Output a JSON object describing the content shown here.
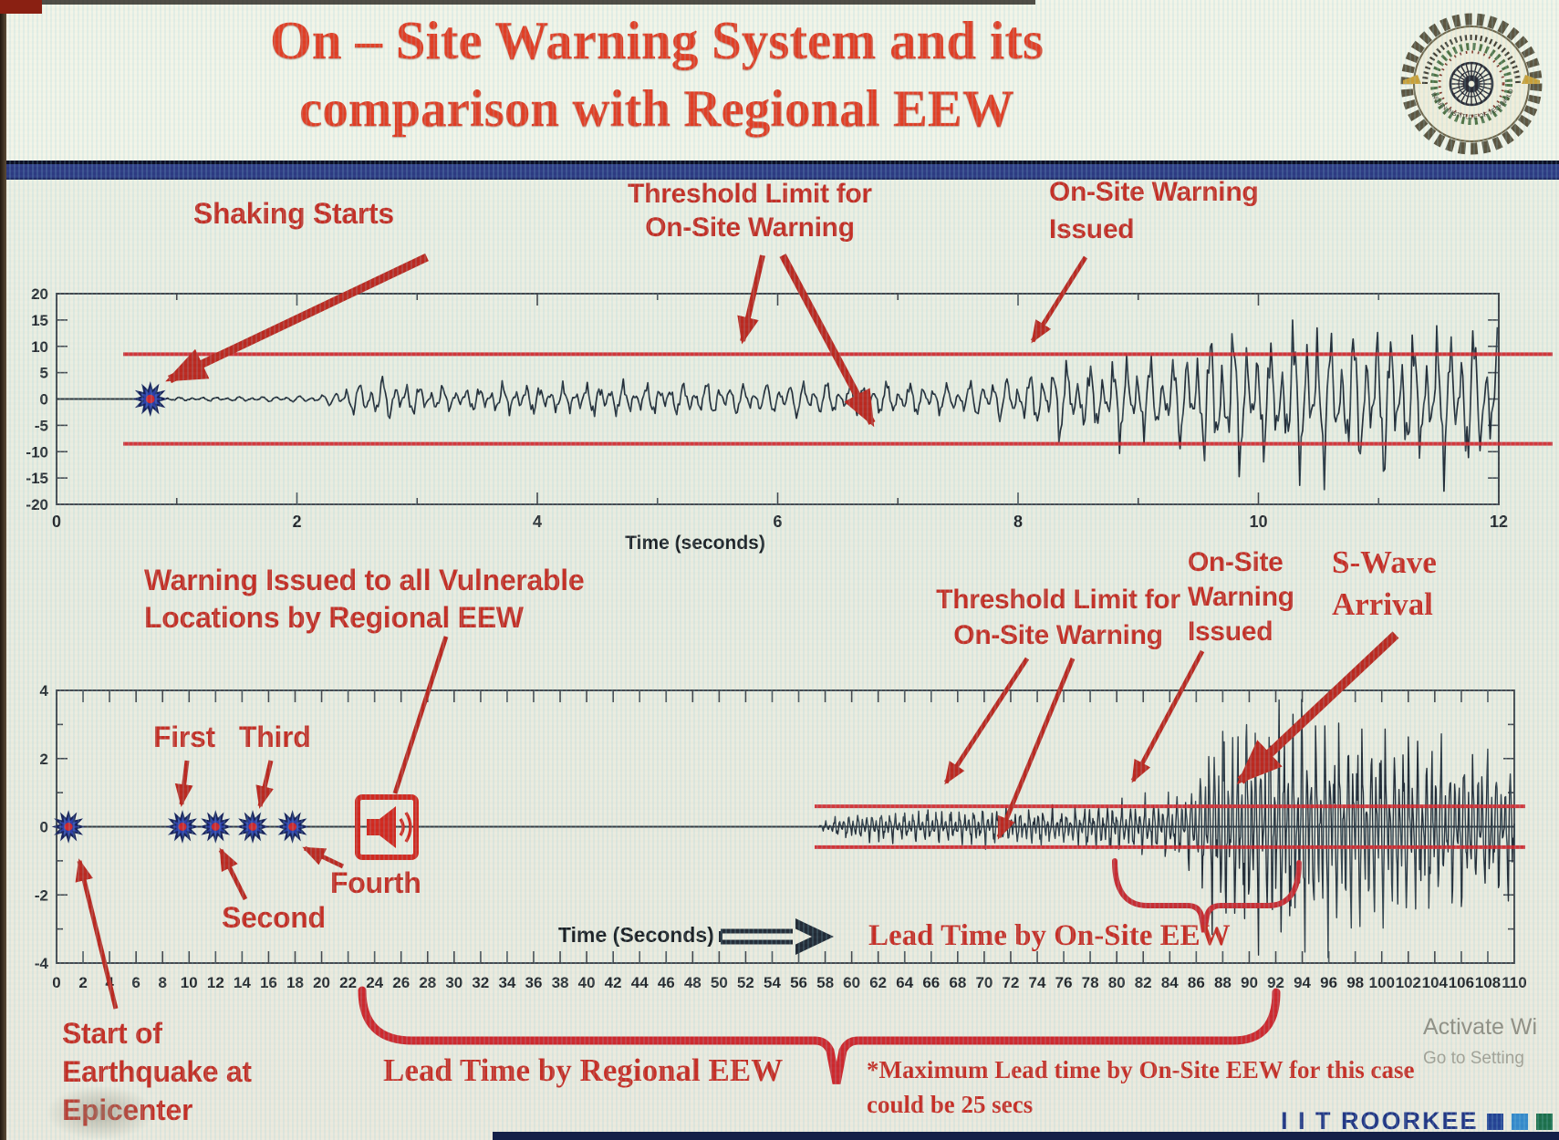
{
  "title": {
    "line1": "On – Site Warning System and its",
    "line2": "comparison with Regional EEW"
  },
  "logo": {
    "bottom_arc_text": "INDIAN INSTITUTE OF TECHNOLOGY ROORKEE"
  },
  "divider": {
    "color": "#26357f"
  },
  "ann": {
    "shaking": "Shaking Starts",
    "thr_top_1": "Threshold Limit for",
    "thr_top_2": "On-Site Warning",
    "onsite_top_1": "On-Site Warning",
    "onsite_top_2": "Issued",
    "regional_1": "Warning Issued to all Vulnerable",
    "regional_2": "Locations by Regional EEW",
    "first": "First",
    "second": "Second",
    "third": "Third",
    "fourth": "Fourth",
    "thr_bot_1": "Threshold Limit for",
    "thr_bot_2": "On-Site Warning",
    "onsite_bot_1": "On-Site",
    "onsite_bot_2": "Warning",
    "onsite_bot_3": "Issued",
    "swave_1": "S-Wave",
    "swave_2": "Arrival",
    "epicenter_1": "Start of",
    "epicenter_2": "Earthquake at",
    "epicenter_3": "Epicenter",
    "lead_onsite": "Lead Time by On-Site EEW",
    "lead_regional": "Lead Time by Regional EEW",
    "footnote_1": "*Maximum Lead time by On-Site EEW for this case",
    "footnote_2": "could be 25 secs"
  },
  "watermark": {
    "line1": "Activate Wi",
    "line2": "Go to Setting"
  },
  "branding": {
    "text": "I I T ROORKEE",
    "squares": [
      "#1d3c90",
      "#2e86c9",
      "#156b46"
    ]
  },
  "colors": {
    "accent_red": "#c3271d",
    "threshold_red": "#cf2026",
    "wave": "#1c2632",
    "star_blue": "#2438a6",
    "title_red": "#e0381e",
    "band_navy": "#26357f"
  },
  "chart_data": [
    {
      "type": "line",
      "name": "onsite-warning-seismogram",
      "xlabel": "Time (seconds)",
      "x_range": [
        0,
        12
      ],
      "y_range": [
        -20,
        20
      ],
      "x_ticks": [
        0,
        2,
        4,
        6,
        8,
        10,
        12
      ],
      "y_ticks": [
        20,
        15,
        10,
        5,
        0,
        -5,
        -10,
        -15,
        -20
      ],
      "threshold": 8.5,
      "shaking_start_x": 0.78,
      "warning_issued_x": 8.2,
      "envelope": [
        [
          0.78,
          0.3
        ],
        [
          1.5,
          0.5
        ],
        [
          2.2,
          0.8
        ],
        [
          2.45,
          3.2
        ],
        [
          2.7,
          4.8
        ],
        [
          3.0,
          3.0
        ],
        [
          3.4,
          2.2
        ],
        [
          3.8,
          3.0
        ],
        [
          4.2,
          2.6
        ],
        [
          4.6,
          3.4
        ],
        [
          5.0,
          3.0
        ],
        [
          5.4,
          3.8
        ],
        [
          5.8,
          3.2
        ],
        [
          6.2,
          4.2
        ],
        [
          6.6,
          3.4
        ],
        [
          7.0,
          3.8
        ],
        [
          7.4,
          3.2
        ],
        [
          7.8,
          4.6
        ],
        [
          8.1,
          5.2
        ],
        [
          8.35,
          8.8
        ],
        [
          8.6,
          6.5
        ],
        [
          8.9,
          9.5
        ],
        [
          9.2,
          7.5
        ],
        [
          9.5,
          12
        ],
        [
          9.8,
          15
        ],
        [
          10.1,
          11
        ],
        [
          10.4,
          16.5
        ],
        [
          10.7,
          13
        ],
        [
          11.0,
          16
        ],
        [
          11.3,
          12
        ],
        [
          11.6,
          15.5
        ],
        [
          12,
          13.5
        ]
      ],
      "osc": [
        [
          63,
          1,
          0
        ],
        [
          37.3,
          0.55,
          1.3
        ],
        [
          151,
          0.3,
          0.7
        ]
      ],
      "mod_seed": 211.7,
      "start_t": 0.78,
      "dt": 0.012
    },
    {
      "type": "line",
      "name": "regional-vs-onsite-seismogram",
      "xlabel": "Time (Seconds)",
      "x_range": [
        0,
        110
      ],
      "y_range": [
        -4,
        4
      ],
      "x_ticks": [
        0,
        2,
        4,
        6,
        8,
        10,
        12,
        14,
        16,
        18,
        20,
        22,
        24,
        26,
        28,
        30,
        32,
        34,
        36,
        38,
        40,
        42,
        44,
        46,
        48,
        50,
        52,
        54,
        56,
        58,
        60,
        62,
        64,
        66,
        68,
        70,
        72,
        74,
        76,
        78,
        80,
        82,
        84,
        86,
        88,
        90,
        92,
        94,
        96,
        98,
        100,
        102,
        104,
        106,
        108,
        110
      ],
      "y_ticks": [
        4,
        2,
        0,
        -2,
        -4
      ],
      "threshold": 0.6,
      "epicenter_x": 0.9,
      "p_wave_detections": [
        {
          "label": "First",
          "x": 9.5
        },
        {
          "label": "Second",
          "x": 12
        },
        {
          "label": "Third",
          "x": 14.8
        },
        {
          "label": "Fourth",
          "x": 17.8
        }
      ],
      "regional_warning_x": 24.8,
      "onsite_warning_x": 80,
      "swave_arrival_x": 86.5,
      "lead_time_regional_span": [
        24.5,
        93
      ],
      "lead_time_onsite_span": [
        80,
        93.5
      ],
      "max_lead_time_onsite_secs": 25,
      "envelope": [
        [
          57.5,
          0.05
        ],
        [
          58,
          0.15
        ],
        [
          59,
          0.3
        ],
        [
          60,
          0.38
        ],
        [
          62,
          0.45
        ],
        [
          64,
          0.4
        ],
        [
          66,
          0.5
        ],
        [
          68,
          0.45
        ],
        [
          70,
          0.55
        ],
        [
          72,
          0.5
        ],
        [
          74,
          0.55
        ],
        [
          76,
          0.5
        ],
        [
          78,
          0.65
        ],
        [
          80,
          0.78
        ],
        [
          81,
          0.68
        ],
        [
          82,
          0.85
        ],
        [
          83,
          0.8
        ],
        [
          84,
          0.95
        ],
        [
          85,
          1.05
        ],
        [
          86,
          1.4
        ],
        [
          87,
          2.6
        ],
        [
          88,
          3.2
        ],
        [
          89,
          2.8
        ],
        [
          90,
          3.6
        ],
        [
          91,
          3.0
        ],
        [
          92,
          3.7
        ],
        [
          93,
          3.2
        ],
        [
          94,
          3.8
        ],
        [
          95,
          3.0
        ],
        [
          96,
          3.5
        ],
        [
          97,
          2.8
        ],
        [
          98,
          3.4
        ],
        [
          99,
          2.7
        ],
        [
          100,
          3.2
        ],
        [
          101,
          2.5
        ],
        [
          102,
          3.0
        ],
        [
          103,
          2.3
        ],
        [
          104,
          2.8
        ],
        [
          105,
          2.1
        ],
        [
          106,
          2.6
        ],
        [
          107,
          2.0
        ],
        [
          108,
          2.4
        ],
        [
          109,
          1.9
        ],
        [
          110,
          2.2
        ]
      ],
      "osc": [
        [
          18,
          1,
          0
        ],
        [
          10.7,
          0.55,
          2.0
        ],
        [
          43,
          0.3,
          0.5
        ]
      ],
      "mod_seed": 57.3,
      "start_t": 57.5,
      "dt": 0.05
    }
  ]
}
